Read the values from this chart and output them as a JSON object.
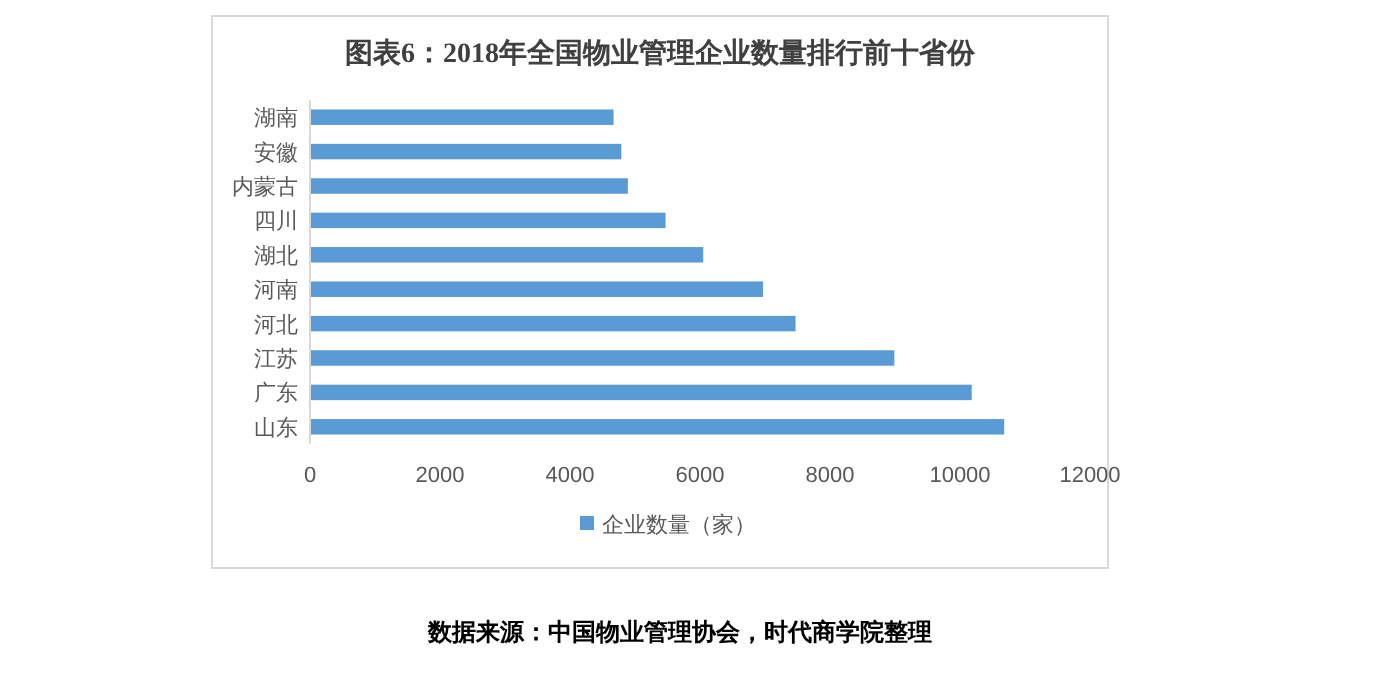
{
  "chart_data": {
    "type": "bar",
    "orientation": "horizontal",
    "title": "图表6：2018年全国物业管理企业数量排行前十省份",
    "categories": [
      "湖南",
      "安徽",
      "内蒙古",
      "四川",
      "湖北",
      "河南",
      "河北",
      "江苏",
      "广东",
      "山东"
    ],
    "series": [
      {
        "name": "企业数量（家）",
        "color": "#5b9bd5",
        "values": [
          4670,
          4790,
          4890,
          5470,
          6050,
          6970,
          7470,
          8990,
          10180,
          10680
        ]
      }
    ],
    "xlim": [
      0,
      12000
    ],
    "xticks": [
      0,
      2000,
      4000,
      6000,
      8000,
      10000,
      12000
    ],
    "grid": false,
    "legend": "bottom",
    "annotations": [
      "数据来源：中国物业管理协会，时代商学院整理"
    ]
  }
}
